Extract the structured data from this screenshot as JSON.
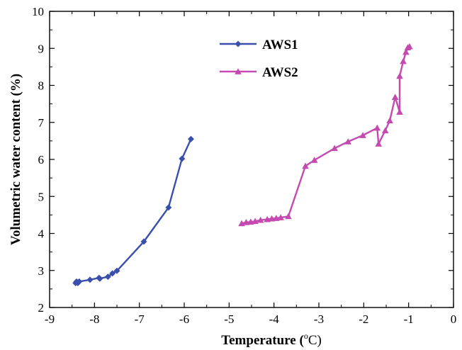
{
  "chart_data": {
    "type": "line",
    "xlabel": "Temperature (",
    "xlabel_unit_sup": "o",
    "xlabel_unit_rest": "C)",
    "ylabel": "Volumetric water content (%)",
    "xlim": [
      -9,
      0
    ],
    "ylim": [
      2,
      10
    ],
    "x_ticks": [
      "-9",
      "-8",
      "-7",
      "-6",
      "-5",
      "-4",
      "-3",
      "-2",
      "-1",
      "0"
    ],
    "y_ticks": [
      "2",
      "3",
      "4",
      "5",
      "6",
      "7",
      "8",
      "9",
      "10"
    ],
    "grid": false,
    "legend_position": "top-center",
    "series": [
      {
        "name": "AWS1",
        "color": "#3a4fad",
        "marker": "diamond",
        "points": [
          [
            -8.42,
            2.66
          ],
          [
            -8.4,
            2.7
          ],
          [
            -8.37,
            2.66
          ],
          [
            -8.34,
            2.7
          ],
          [
            -8.1,
            2.75
          ],
          [
            -7.9,
            2.8
          ],
          [
            -7.88,
            2.78
          ],
          [
            -7.7,
            2.83
          ],
          [
            -7.6,
            2.92
          ],
          [
            -7.5,
            2.99
          ],
          [
            -6.9,
            3.78
          ],
          [
            -6.35,
            4.7
          ],
          [
            -6.05,
            6.02
          ],
          [
            -5.85,
            6.55
          ]
        ]
      },
      {
        "name": "AWS2",
        "color": "#c44ab0",
        "marker": "triangle",
        "points": [
          [
            -4.72,
            4.27
          ],
          [
            -4.62,
            4.3
          ],
          [
            -4.52,
            4.31
          ],
          [
            -4.42,
            4.33
          ],
          [
            -4.3,
            4.36
          ],
          [
            -4.15,
            4.38
          ],
          [
            -4.05,
            4.4
          ],
          [
            -3.95,
            4.41
          ],
          [
            -3.85,
            4.43
          ],
          [
            -3.68,
            4.46
          ],
          [
            -3.3,
            5.82
          ],
          [
            -3.1,
            5.98
          ],
          [
            -2.65,
            6.3
          ],
          [
            -2.35,
            6.48
          ],
          [
            -2.02,
            6.65
          ],
          [
            -1.7,
            6.85
          ],
          [
            -1.67,
            6.42
          ],
          [
            -1.52,
            6.78
          ],
          [
            -1.42,
            7.05
          ],
          [
            -1.3,
            7.68
          ],
          [
            -1.2,
            7.28
          ],
          [
            -1.2,
            8.25
          ],
          [
            -1.12,
            8.65
          ],
          [
            -1.06,
            8.9
          ],
          [
            -1.02,
            9.02
          ],
          [
            -0.98,
            9.05
          ]
        ]
      }
    ]
  }
}
